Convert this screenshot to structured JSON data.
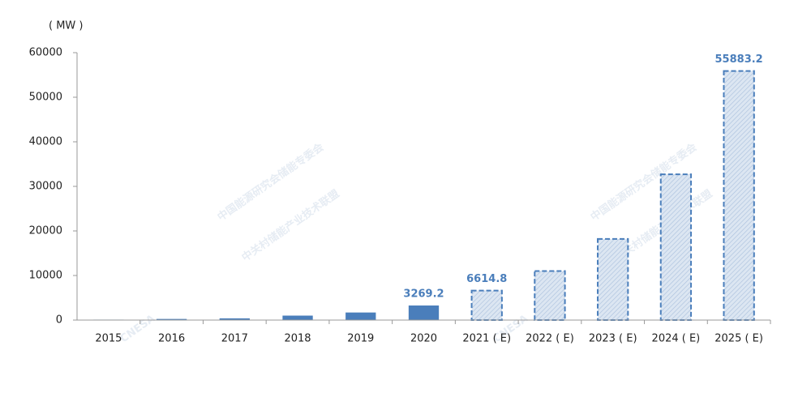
{
  "chart_data": {
    "type": "bar",
    "y_label": "( MW )",
    "categories": [
      "2015",
      "2016",
      "2017",
      "2018",
      "2019",
      "2020",
      "2021 ( E)",
      "2022 ( E)",
      "2023 ( E)",
      "2024 ( E)",
      "2025 ( E)"
    ],
    "values": [
      100,
      250,
      390,
      1000,
      1700,
      3269.2,
      6614.8,
      11000,
      18200,
      32700,
      55883.2
    ],
    "bar_styles": [
      "solid",
      "solid",
      "solid",
      "solid",
      "solid",
      "solid",
      "hatched",
      "hatched",
      "hatched",
      "hatched",
      "hatched"
    ],
    "show_value": [
      false,
      false,
      false,
      false,
      false,
      true,
      true,
      false,
      false,
      false,
      true
    ],
    "color": "#4a7ebb",
    "hatch_color": "#dce6f2",
    "ylim": [
      0,
      60000
    ],
    "yticks": [
      0,
      10000,
      20000,
      30000,
      40000,
      50000,
      60000
    ],
    "watermark": [
      "CNESA",
      "中国能源研究会储能专委会",
      "中关村储能产业技术联盟"
    ]
  }
}
